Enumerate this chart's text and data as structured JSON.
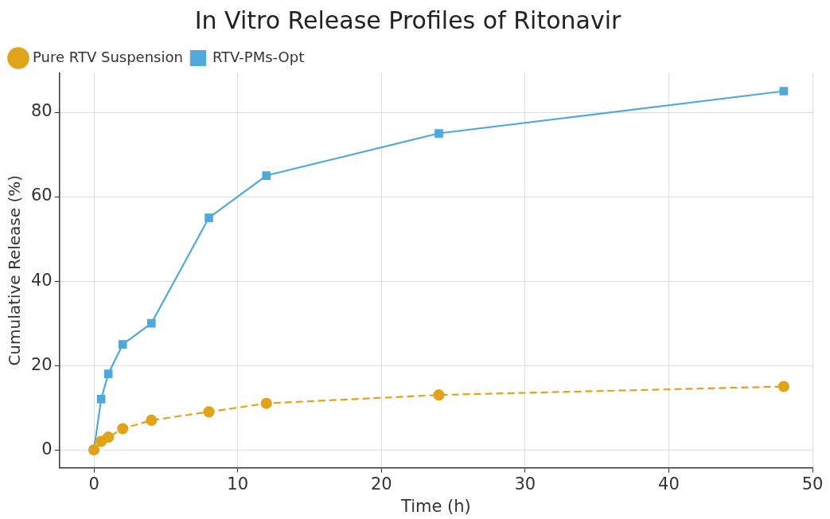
{
  "chart_data": {
    "type": "line",
    "title": "In Vitro Release Profiles of Ritonavir",
    "xlabel": "Time (h)",
    "ylabel": "Cumulative Release (%)",
    "x": [
      0,
      0.5,
      1,
      2,
      4,
      8,
      12,
      24,
      48
    ],
    "series": [
      {
        "name": "Pure RTV Suspension",
        "color": "#e0a31a",
        "marker": "circle",
        "line_style": "dashed",
        "values": [
          0,
          2,
          3,
          5,
          7,
          9,
          11,
          13,
          15
        ]
      },
      {
        "name": "RTV-PMs-Opt",
        "color": "#4fa9dc",
        "marker": "square",
        "line_style": "solid",
        "values": [
          0,
          12,
          18,
          25,
          30,
          55,
          65,
          75,
          85
        ]
      }
    ],
    "xlim": [
      -2.4,
      50
    ],
    "xticks": [
      0,
      10,
      20,
      30,
      40,
      50
    ],
    "ylim": [
      -4.25,
      89.25
    ],
    "yticks": [
      0,
      20,
      40,
      60,
      80
    ],
    "grid": true,
    "legend": "top left"
  }
}
